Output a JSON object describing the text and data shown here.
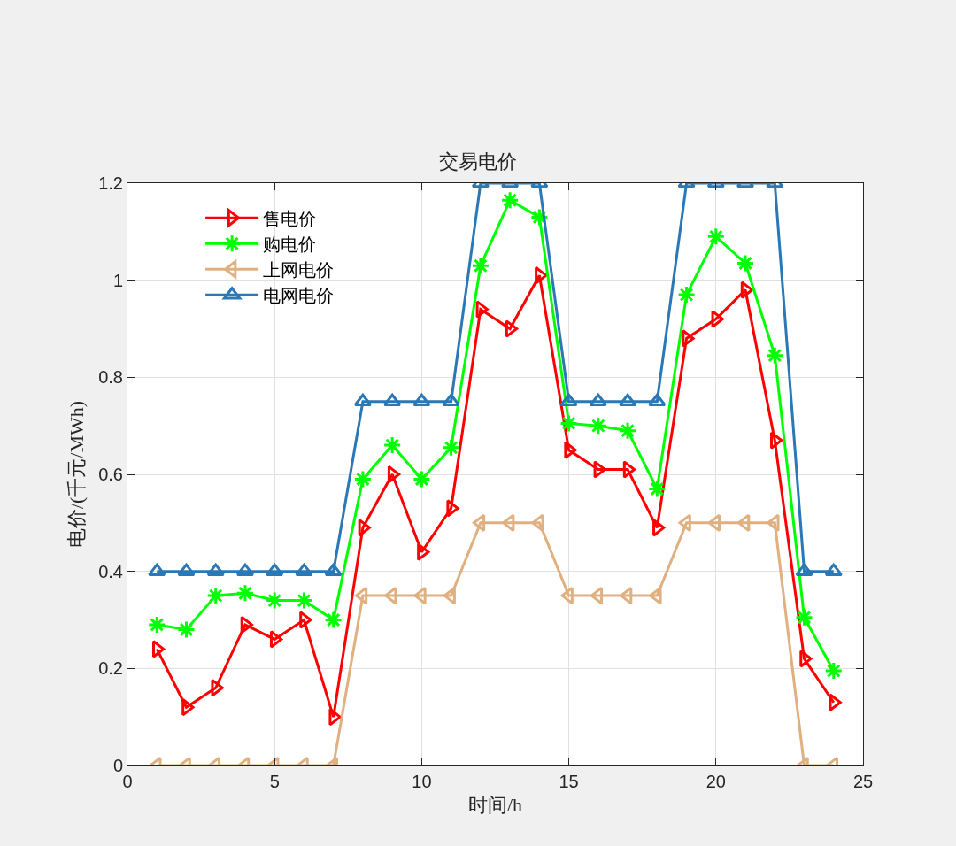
{
  "chart_data": {
    "type": "line",
    "title": "交易电价",
    "xlabel": "时间/h",
    "ylabel": "电价/(千元/MWh)",
    "x": [
      1,
      2,
      3,
      4,
      5,
      6,
      7,
      8,
      9,
      10,
      11,
      12,
      13,
      14,
      15,
      16,
      17,
      18,
      19,
      20,
      21,
      22,
      23,
      24
    ],
    "series": [
      {
        "name": "售电价",
        "color": "#ff0000",
        "marker": "triangle-right",
        "values": [
          0.24,
          0.12,
          0.16,
          0.29,
          0.26,
          0.3,
          0.1,
          0.49,
          0.6,
          0.44,
          0.53,
          0.94,
          0.9,
          1.01,
          0.65,
          0.61,
          0.61,
          0.49,
          0.88,
          0.92,
          0.98,
          0.67,
          0.22,
          0.13
        ]
      },
      {
        "name": "购电价",
        "color": "#00ff00",
        "marker": "cross",
        "values": [
          0.29,
          0.28,
          0.35,
          0.355,
          0.34,
          0.34,
          0.3,
          0.59,
          0.66,
          0.59,
          0.655,
          1.03,
          1.165,
          1.13,
          0.705,
          0.7,
          0.69,
          0.57,
          0.97,
          1.09,
          1.035,
          0.845,
          0.305,
          0.195
        ]
      },
      {
        "name": "上网电价",
        "color": "#e0b080",
        "marker": "triangle-left",
        "values": [
          0,
          0,
          0,
          0,
          0,
          0,
          0,
          0.35,
          0.35,
          0.35,
          0.35,
          0.5,
          0.5,
          0.5,
          0.35,
          0.35,
          0.35,
          0.35,
          0.5,
          0.5,
          0.5,
          0.5,
          0,
          0
        ]
      },
      {
        "name": "电网电价",
        "color": "#2a78b6",
        "marker": "triangle",
        "values": [
          0.4,
          0.4,
          0.4,
          0.4,
          0.4,
          0.4,
          0.4,
          0.75,
          0.75,
          0.75,
          0.75,
          1.2,
          1.2,
          1.2,
          0.75,
          0.75,
          0.75,
          0.75,
          1.2,
          1.2,
          1.2,
          1.2,
          0.4,
          0.4
        ]
      }
    ],
    "xlim": [
      0,
      25
    ],
    "xticks": [
      0,
      5,
      10,
      15,
      20,
      25
    ],
    "ylim": [
      0,
      1.2
    ],
    "yticks": [
      0,
      0.2,
      0.4,
      0.6,
      0.8,
      1,
      1.2
    ],
    "grid": true,
    "legend": "top left",
    "line_style": "solid"
  }
}
